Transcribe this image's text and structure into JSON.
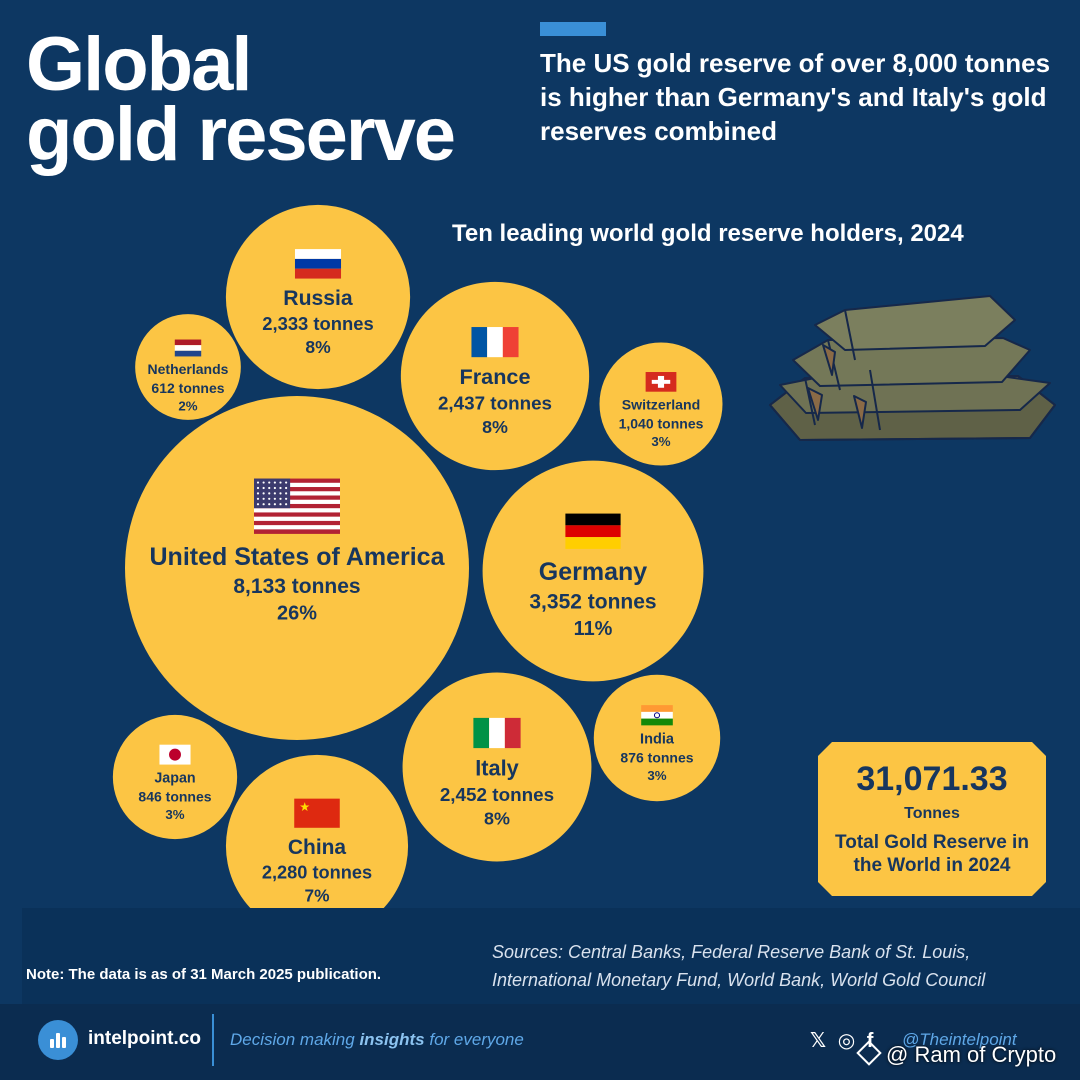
{
  "title": {
    "line1": "Global",
    "line2": "gold reserve"
  },
  "headline": "The US gold reserve of over 8,000 tonnes is higher than Germany's and Italy's gold reserves combined",
  "subtitle": "Ten leading world gold reserve holders, 2024",
  "colors": {
    "background": "#0d3762",
    "bubble": "#fcc544",
    "bubble_text": "#17365e",
    "accent": "#3a8fd6",
    "gold_bar": "#6f7254"
  },
  "chart_data": {
    "type": "bubble",
    "title": "Ten leading world gold reserve holders, 2024",
    "unit": "tonnes",
    "points": [
      {
        "name": "United States of America",
        "value": 8133,
        "value_label": "8,133 tonnes",
        "share": "26%",
        "flag": "us"
      },
      {
        "name": "Germany",
        "value": 3352,
        "value_label": "3,352 tonnes",
        "share": "11%",
        "flag": "de"
      },
      {
        "name": "Italy",
        "value": 2452,
        "value_label": "2,452 tonnes",
        "share": "8%",
        "flag": "it"
      },
      {
        "name": "France",
        "value": 2437,
        "value_label": "2,437 tonnes",
        "share": "8%",
        "flag": "fr"
      },
      {
        "name": "Russia",
        "value": 2333,
        "value_label": "2,333 tonnes",
        "share": "8%",
        "flag": "ru"
      },
      {
        "name": "China",
        "value": 2280,
        "value_label": "2,280 tonnes",
        "share": "7%",
        "flag": "cn"
      },
      {
        "name": "Switzerland",
        "value": 1040,
        "value_label": "1,040 tonnes",
        "share": "3%",
        "flag": "ch"
      },
      {
        "name": "India",
        "value": 876,
        "value_label": "876 tonnes",
        "share": "3%",
        "flag": "in"
      },
      {
        "name": "Japan",
        "value": 846,
        "value_label": "846 tonnes",
        "share": "3%",
        "flag": "jp"
      },
      {
        "name": "Netherlands",
        "value": 612,
        "value_label": "612 tonnes",
        "share": "2%",
        "flag": "nl"
      }
    ]
  },
  "total": {
    "value": "31,071.33",
    "unit": "Tonnes",
    "label": "Total Gold Reserve in the World in 2024"
  },
  "note": "Note: The data is as of 31 March 2025 publication.",
  "sources": "Sources: Central Banks, Federal Reserve Bank of St. Louis, International Monetary Fund, World Bank, World Gold Council",
  "footer": {
    "brand": "intelpoint.co",
    "tagline_pre": "Decision making ",
    "tagline_bold": "insights",
    "tagline_post": " for everyone",
    "social_x": "𝕏",
    "social_instagram": "◎",
    "social_facebook": "f",
    "handle": "@Theintelpoint",
    "watermark": "@ Ram of Crypto"
  },
  "icons": [
    "gold-bars-icon",
    "intelpoint-logo-icon",
    "x-icon",
    "instagram-icon",
    "facebook-icon"
  ]
}
